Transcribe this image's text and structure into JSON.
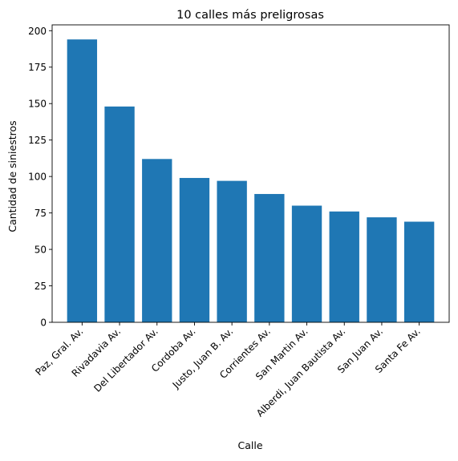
{
  "chart_data": {
    "type": "bar",
    "title": "10 calles más preligrosas",
    "xlabel": "Calle",
    "ylabel": "Cantidad de siniestros",
    "categories": [
      "Paz, Gral. Av.",
      "Rivadavia Av.",
      "Del Libertador Av.",
      "Cordoba Av.",
      "Justo, Juan B. Av.",
      "Corrientes Av.",
      "San Martin Av.",
      "Alberdi, Juan Bautista Av.",
      "San Juan Av.",
      "Santa Fe Av."
    ],
    "values": [
      194,
      148,
      112,
      99,
      97,
      88,
      80,
      76,
      72,
      69
    ],
    "ylim": [
      0,
      204
    ],
    "yticks": [
      0,
      25,
      50,
      75,
      100,
      125,
      150,
      175,
      200
    ],
    "grid": false,
    "bar_color": "#1f77b4"
  }
}
